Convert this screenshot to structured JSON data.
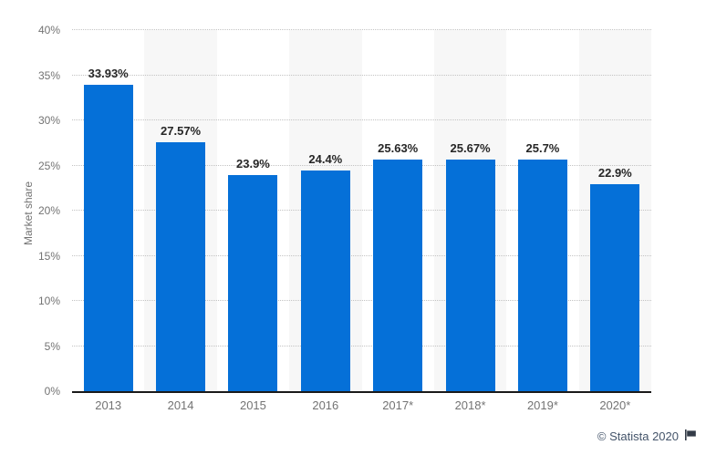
{
  "chart_data": {
    "type": "bar",
    "title": "",
    "categories": [
      "2013",
      "2014",
      "2015",
      "2016",
      "2017*",
      "2018*",
      "2019*",
      "2020*"
    ],
    "values": [
      33.93,
      27.57,
      23.9,
      24.4,
      25.63,
      25.67,
      25.7,
      22.9
    ],
    "value_labels": [
      "33.93%",
      "27.57%",
      "23.9%",
      "24.4%",
      "25.63%",
      "25.67%",
      "25.7%",
      "22.9%"
    ],
    "xlabel": "",
    "ylabel": "Market share",
    "ylim": [
      0,
      40
    ],
    "ytick_step": 5,
    "ytick_labels": [
      "0%",
      "5%",
      "10%",
      "15%",
      "20%",
      "25%",
      "30%",
      "35%",
      "40%"
    ],
    "grid": "horizontal-dotted",
    "legend": "none",
    "colors": {
      "bar": "#0570d8",
      "stripe": "#f7f7f7",
      "gridline": "#c3c3c3",
      "axis": "#1a1a1a",
      "tick_text": "#737373",
      "value_text": "#262626",
      "footer_text": "#44546a"
    }
  },
  "footer": {
    "copyright": "© Statista 2020"
  }
}
